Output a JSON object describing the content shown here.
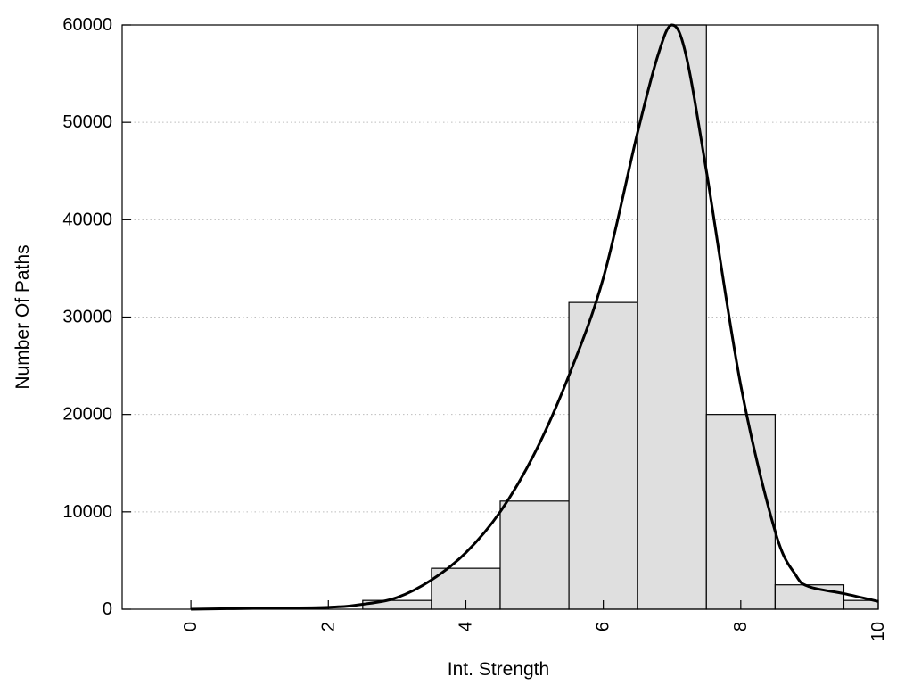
{
  "chart_data": {
    "type": "bar",
    "title": "",
    "xlabel": "Int. Strength",
    "ylabel": "Number Of Paths",
    "xlim": [
      -1,
      10
    ],
    "ylim": [
      0,
      60000
    ],
    "grid": true,
    "x_ticks": [
      0,
      2,
      4,
      6,
      8,
      10
    ],
    "x_tick_labels": [
      "0",
      "2",
      "4",
      "6",
      "8",
      "10"
    ],
    "y_ticks": [
      0,
      10000,
      20000,
      30000,
      40000,
      50000,
      60000
    ],
    "y_tick_labels": [
      "0",
      "10000",
      "20000",
      "30000",
      "40000",
      "50000",
      "60000"
    ],
    "bar_width": 1,
    "bars": [
      {
        "x": 0,
        "value": 0
      },
      {
        "x": 1,
        "value": 0
      },
      {
        "x": 2,
        "value": 0
      },
      {
        "x": 3,
        "value": 900
      },
      {
        "x": 4,
        "value": 4200
      },
      {
        "x": 5,
        "value": 11100
      },
      {
        "x": 6,
        "value": 31500
      },
      {
        "x": 7,
        "value": 60000
      },
      {
        "x": 8,
        "value": 20000
      },
      {
        "x": 9,
        "value": 2500
      },
      {
        "x": 10,
        "value": 900
      }
    ],
    "density_curve": {
      "x": [
        0,
        1,
        2,
        2.5,
        3,
        3.5,
        4,
        4.5,
        5,
        5.5,
        6,
        6.5,
        6.8,
        7,
        7.2,
        7.5,
        8,
        8.5,
        8.8,
        9,
        9.5,
        10
      ],
      "y": [
        0,
        100,
        200,
        500,
        1200,
        3000,
        5800,
        10000,
        16000,
        24000,
        34000,
        49000,
        57000,
        60000,
        57000,
        45000,
        23000,
        8000,
        3500,
        2300,
        1600,
        800
      ]
    }
  }
}
